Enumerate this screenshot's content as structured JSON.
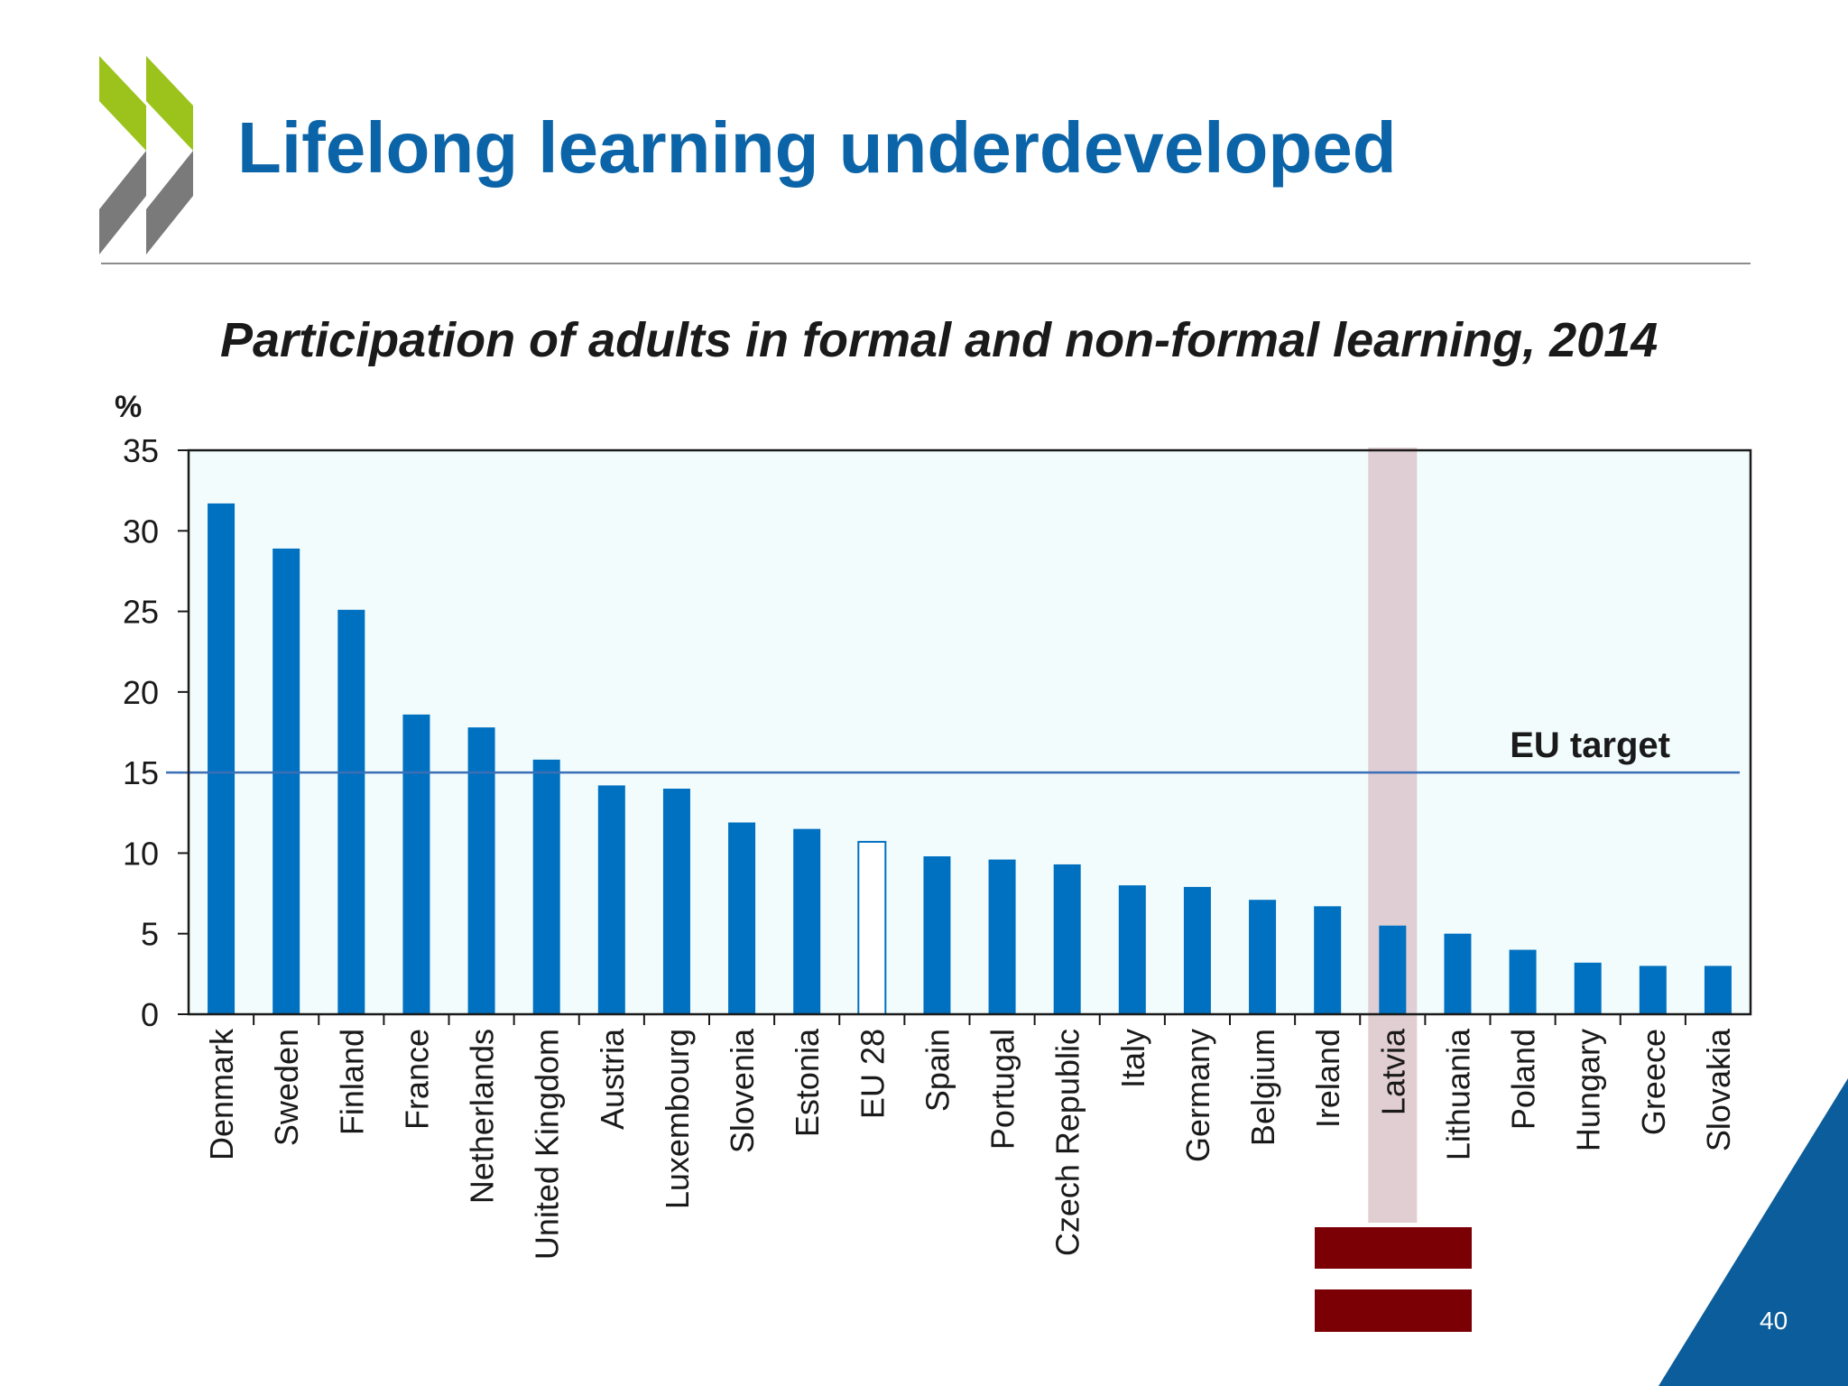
{
  "slide": {
    "title": "Lifelong learning underdeveloped",
    "page_number": "40"
  },
  "colors": {
    "title": "#0b64a8",
    "bar": "#0070c0",
    "plot_background": "#f2fcfd",
    "highlight": "#dcc6cb",
    "eu_target_line": "#3b6fb6",
    "logo_green": "#9bc31c",
    "logo_grey": "#7a7a7a",
    "flag_red": "#7a0006",
    "corner_blue": "#0b5d9b"
  },
  "chart_data": {
    "type": "bar",
    "title": "Participation of adults in formal and non-formal learning, 2014",
    "ylabel": "%",
    "ylim": [
      0,
      35
    ],
    "yticks": [
      0,
      5,
      10,
      15,
      20,
      25,
      30,
      35
    ],
    "categories": [
      "Denmark",
      "Sweden",
      "Finland",
      "France",
      "Netherlands",
      "United Kingdom",
      "Austria",
      "Luxembourg",
      "Slovenia",
      "Estonia",
      "EU 28",
      "Spain",
      "Portugal",
      "Czech Republic",
      "Italy",
      "Germany",
      "Belgium",
      "Ireland",
      "Latvia",
      "Lithuania",
      "Poland",
      "Hungary",
      "Greece",
      "Slovakia"
    ],
    "values": [
      31.7,
      28.9,
      25.1,
      18.6,
      17.8,
      15.8,
      14.2,
      14.0,
      11.9,
      11.5,
      10.7,
      9.8,
      9.6,
      9.3,
      8.0,
      7.9,
      7.1,
      6.7,
      5.5,
      5.0,
      4.0,
      3.2,
      3.0,
      3.0
    ],
    "outlined_categories": [
      "EU 28"
    ],
    "highlighted_category": "Latvia",
    "reference_line": {
      "label": "EU target",
      "value": 15
    },
    "grid": false,
    "legend": "none"
  }
}
